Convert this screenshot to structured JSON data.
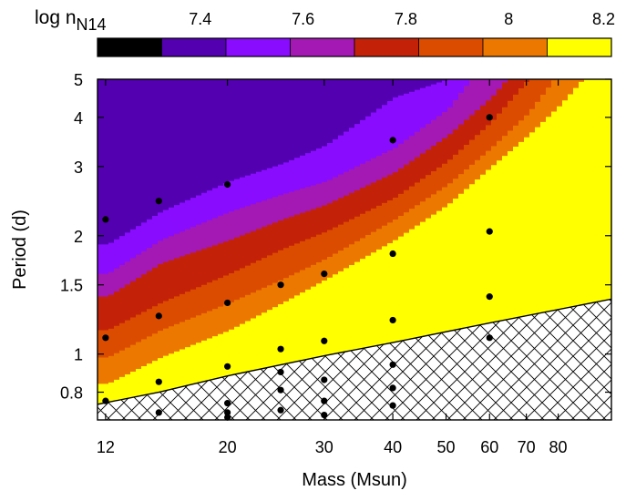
{
  "chart_data": {
    "type": "heatmap",
    "xlabel": "Mass (Msun)",
    "ylabel": "Period (d)",
    "x_scale": "log",
    "y_scale": "log",
    "xlim": [
      11.6,
      100
    ],
    "ylim": [
      0.68,
      5
    ],
    "x_ticks": [
      12,
      20,
      30,
      40,
      50,
      60,
      70,
      80
    ],
    "y_ticks": [
      0.8,
      1,
      1.5,
      2,
      3,
      4,
      5
    ],
    "colorbar": {
      "label_prefix": "log n",
      "label_subscript": "N14",
      "range": [
        7.2,
        8.2
      ],
      "tick_values": [
        7.4,
        7.6,
        7.8,
        8,
        8.2
      ],
      "tick_labels": [
        "7.4",
        "7.6",
        "7.8",
        "8",
        "8.2"
      ],
      "bands": [
        {
          "from": 7.2,
          "to": 7.325,
          "color": "#000000"
        },
        {
          "from": 7.325,
          "to": 7.45,
          "color": "#5200b0"
        },
        {
          "from": 7.45,
          "to": 7.575,
          "color": "#8a0cff"
        },
        {
          "from": 7.575,
          "to": 7.7,
          "color": "#a418b4"
        },
        {
          "from": 7.7,
          "to": 7.825,
          "color": "#c32208"
        },
        {
          "from": 7.825,
          "to": 7.95,
          "color": "#dc4c00"
        },
        {
          "from": 7.95,
          "to": 8.075,
          "color": "#ec7800"
        },
        {
          "from": 8.075,
          "to": 8.2,
          "color": "#ffff00"
        }
      ]
    },
    "contour_boundaries": [
      {
        "upper": 7.45,
        "points": [
          [
            12,
            1.9
          ],
          [
            15,
            2.3
          ],
          [
            20,
            2.75
          ],
          [
            25,
            3.05
          ],
          [
            30,
            3.4
          ],
          [
            40,
            4.5
          ],
          [
            50,
            5.0
          ]
        ]
      },
      {
        "upper": 7.575,
        "points": [
          [
            12,
            1.6
          ],
          [
            15,
            1.95
          ],
          [
            20,
            2.3
          ],
          [
            25,
            2.55
          ],
          [
            30,
            2.75
          ],
          [
            40,
            3.35
          ],
          [
            50,
            4.2
          ],
          [
            55,
            5.0
          ]
        ]
      },
      {
        "upper": 7.7,
        "points": [
          [
            12,
            1.4
          ],
          [
            15,
            1.7
          ],
          [
            20,
            1.95
          ],
          [
            25,
            2.2
          ],
          [
            30,
            2.4
          ],
          [
            40,
            2.9
          ],
          [
            50,
            3.6
          ],
          [
            60,
            4.5
          ],
          [
            64,
            5.0
          ]
        ]
      },
      {
        "upper": 7.825,
        "points": [
          [
            12,
            1.15
          ],
          [
            15,
            1.35
          ],
          [
            20,
            1.6
          ],
          [
            25,
            1.85
          ],
          [
            30,
            2.05
          ],
          [
            40,
            2.5
          ],
          [
            50,
            3.1
          ],
          [
            60,
            3.9
          ],
          [
            70,
            5.0
          ]
        ]
      },
      {
        "upper": 7.95,
        "points": [
          [
            12,
            0.98
          ],
          [
            15,
            1.15
          ],
          [
            20,
            1.35
          ],
          [
            25,
            1.55
          ],
          [
            30,
            1.75
          ],
          [
            40,
            2.2
          ],
          [
            50,
            2.7
          ],
          [
            60,
            3.35
          ],
          [
            70,
            4.1
          ],
          [
            78,
            5.0
          ]
        ]
      },
      {
        "upper": 8.075,
        "points": [
          [
            12,
            0.84
          ],
          [
            15,
            0.98
          ],
          [
            20,
            1.15
          ],
          [
            25,
            1.35
          ],
          [
            30,
            1.55
          ],
          [
            40,
            1.95
          ],
          [
            50,
            2.4
          ],
          [
            60,
            3.0
          ],
          [
            70,
            3.6
          ],
          [
            80,
            4.3
          ],
          [
            88,
            5.0
          ]
        ]
      }
    ],
    "shaded_region_boundary": [
      [
        11.6,
        0.745
      ],
      [
        15,
        0.8
      ],
      [
        20,
        0.88
      ],
      [
        30,
        0.99
      ],
      [
        40,
        1.07
      ],
      [
        60,
        1.2
      ],
      [
        100,
        1.38
      ]
    ],
    "points": [
      {
        "x": 12,
        "y": 2.2
      },
      {
        "x": 12,
        "y": 1.1
      },
      {
        "x": 12,
        "y": 0.76
      },
      {
        "x": 15,
        "y": 2.45
      },
      {
        "x": 15,
        "y": 1.25
      },
      {
        "x": 15,
        "y": 0.85
      },
      {
        "x": 15,
        "y": 0.71
      },
      {
        "x": 20,
        "y": 2.7
      },
      {
        "x": 20,
        "y": 1.35
      },
      {
        "x": 20,
        "y": 0.93
      },
      {
        "x": 20,
        "y": 0.75
      },
      {
        "x": 20,
        "y": 0.71
      },
      {
        "x": 20,
        "y": 0.69
      },
      {
        "x": 25,
        "y": 1.5
      },
      {
        "x": 25,
        "y": 1.03
      },
      {
        "x": 25,
        "y": 0.9
      },
      {
        "x": 25,
        "y": 0.81
      },
      {
        "x": 25,
        "y": 0.72
      },
      {
        "x": 30,
        "y": 1.6
      },
      {
        "x": 30,
        "y": 1.08
      },
      {
        "x": 30,
        "y": 0.86
      },
      {
        "x": 30,
        "y": 0.76
      },
      {
        "x": 30,
        "y": 0.7
      },
      {
        "x": 40,
        "y": 3.5
      },
      {
        "x": 40,
        "y": 1.8
      },
      {
        "x": 40,
        "y": 1.22
      },
      {
        "x": 40,
        "y": 0.94
      },
      {
        "x": 40,
        "y": 0.82
      },
      {
        "x": 40,
        "y": 0.74
      },
      {
        "x": 60,
        "y": 4.0
      },
      {
        "x": 60,
        "y": 2.05
      },
      {
        "x": 60,
        "y": 1.4
      },
      {
        "x": 60,
        "y": 1.1
      }
    ]
  }
}
